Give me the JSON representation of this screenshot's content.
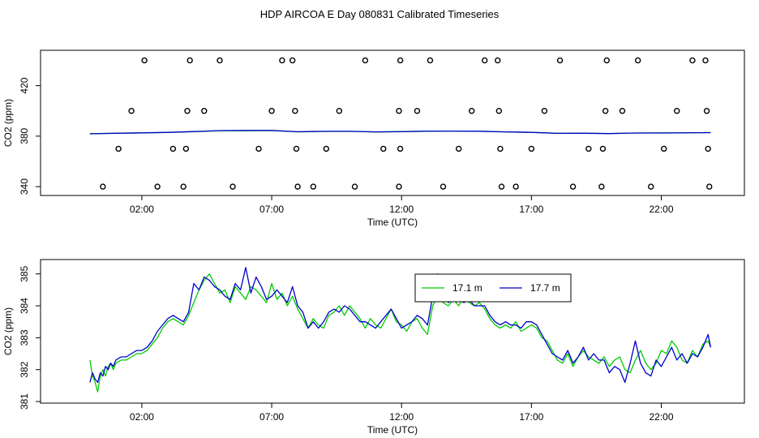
{
  "title": "HDP AIRCOA E  Day 080831  Calibrated Timeseries",
  "chart_data": [
    {
      "type": "line",
      "panel": "top",
      "xlabel": "Time (UTC)",
      "ylabel": "CO2 (ppm)",
      "x_unit": "hours",
      "xlim": [
        -1.9,
        25.2
      ],
      "ylim": [
        333,
        448
      ],
      "x_ticks": [
        {
          "v": 2,
          "label": "02:00"
        },
        {
          "v": 7,
          "label": "07:00"
        },
        {
          "v": 12,
          "label": "12:00"
        },
        {
          "v": 17,
          "label": "17:00"
        },
        {
          "v": 22,
          "label": "22:00"
        }
      ],
      "y_ticks": [
        {
          "v": 340,
          "label": "340"
        },
        {
          "v": 380,
          "label": "380"
        },
        {
          "v": 420,
          "label": "420"
        }
      ],
      "series": [
        {
          "color": "#00cc00",
          "x": [
            0,
            1,
            2,
            3,
            4,
            5,
            6,
            7,
            8,
            9,
            10,
            11,
            12,
            13,
            14,
            15,
            16,
            17,
            18,
            19,
            20,
            21,
            22,
            23.9
          ],
          "values": [
            382.0,
            382.3,
            382.6,
            382.9,
            383.5,
            384.3,
            384.3,
            384.4,
            383.4,
            383.7,
            383.8,
            383.3,
            383.6,
            383.9,
            384.0,
            383.9,
            383.4,
            383.0,
            382.3,
            382.4,
            382.1,
            382.5,
            382.6,
            382.8
          ]
        },
        {
          "color": "#0000cc",
          "x": [
            0,
            1,
            2,
            3,
            4,
            5,
            6,
            7,
            8,
            9,
            10,
            11,
            12,
            13,
            14,
            15,
            16,
            17,
            18,
            19,
            20,
            21,
            22,
            23.9
          ],
          "values": [
            381.8,
            382.3,
            382.6,
            383.0,
            383.6,
            384.4,
            384.5,
            384.5,
            383.5,
            383.8,
            383.8,
            383.4,
            383.5,
            384.0,
            384.0,
            383.9,
            383.4,
            383.0,
            382.2,
            382.3,
            382.0,
            382.5,
            382.5,
            382.8
          ]
        }
      ],
      "points": [
        {
          "x": 0.5,
          "y": 340
        },
        {
          "x": 1.1,
          "y": 370
        },
        {
          "x": 1.6,
          "y": 400
        },
        {
          "x": 2.1,
          "y": 440
        },
        {
          "x": 2.6,
          "y": 340
        },
        {
          "x": 3.2,
          "y": 370
        },
        {
          "x": 3.6,
          "y": 340
        },
        {
          "x": 3.7,
          "y": 370
        },
        {
          "x": 3.75,
          "y": 400
        },
        {
          "x": 3.85,
          "y": 440
        },
        {
          "x": 4.4,
          "y": 400
        },
        {
          "x": 5.0,
          "y": 440
        },
        {
          "x": 5.5,
          "y": 340
        },
        {
          "x": 6.5,
          "y": 370
        },
        {
          "x": 7.0,
          "y": 400
        },
        {
          "x": 7.4,
          "y": 440
        },
        {
          "x": 7.8,
          "y": 440
        },
        {
          "x": 7.9,
          "y": 400
        },
        {
          "x": 7.95,
          "y": 370
        },
        {
          "x": 8.0,
          "y": 340
        },
        {
          "x": 8.6,
          "y": 340
        },
        {
          "x": 9.1,
          "y": 370
        },
        {
          "x": 9.6,
          "y": 400
        },
        {
          "x": 10.2,
          "y": 340
        },
        {
          "x": 10.6,
          "y": 440
        },
        {
          "x": 11.3,
          "y": 370
        },
        {
          "x": 11.9,
          "y": 340
        },
        {
          "x": 11.95,
          "y": 370
        },
        {
          "x": 11.9,
          "y": 400
        },
        {
          "x": 11.95,
          "y": 440
        },
        {
          "x": 12.6,
          "y": 400
        },
        {
          "x": 13.1,
          "y": 440
        },
        {
          "x": 13.6,
          "y": 340
        },
        {
          "x": 14.2,
          "y": 370
        },
        {
          "x": 14.7,
          "y": 400
        },
        {
          "x": 15.2,
          "y": 440
        },
        {
          "x": 15.7,
          "y": 440
        },
        {
          "x": 15.75,
          "y": 400
        },
        {
          "x": 15.8,
          "y": 370
        },
        {
          "x": 15.85,
          "y": 340
        },
        {
          "x": 16.4,
          "y": 340
        },
        {
          "x": 17.0,
          "y": 370
        },
        {
          "x": 17.5,
          "y": 400
        },
        {
          "x": 18.1,
          "y": 440
        },
        {
          "x": 18.6,
          "y": 340
        },
        {
          "x": 19.2,
          "y": 370
        },
        {
          "x": 19.7,
          "y": 340
        },
        {
          "x": 19.75,
          "y": 370
        },
        {
          "x": 19.85,
          "y": 400
        },
        {
          "x": 19.9,
          "y": 440
        },
        {
          "x": 20.5,
          "y": 400
        },
        {
          "x": 21.1,
          "y": 440
        },
        {
          "x": 21.6,
          "y": 340
        },
        {
          "x": 22.1,
          "y": 370
        },
        {
          "x": 22.6,
          "y": 400
        },
        {
          "x": 23.2,
          "y": 440
        },
        {
          "x": 23.7,
          "y": 440
        },
        {
          "x": 23.75,
          "y": 400
        },
        {
          "x": 23.8,
          "y": 370
        },
        {
          "x": 23.85,
          "y": 340
        }
      ]
    },
    {
      "type": "line",
      "panel": "bottom",
      "xlabel": "Time (UTC)",
      "ylabel": "CO2 (ppm)",
      "x_unit": "hours",
      "xlim": [
        -1.9,
        25.2
      ],
      "ylim": [
        380.95,
        385.45
      ],
      "x_ticks": [
        {
          "v": 2,
          "label": "02:00"
        },
        {
          "v": 7,
          "label": "07:00"
        },
        {
          "v": 12,
          "label": "12:00"
        },
        {
          "v": 17,
          "label": "17:00"
        },
        {
          "v": 22,
          "label": "22:00"
        }
      ],
      "y_ticks": [
        {
          "v": 381,
          "label": "381"
        },
        {
          "v": 382,
          "label": "382"
        },
        {
          "v": 383,
          "label": "383"
        },
        {
          "v": 384,
          "label": "384"
        },
        {
          "v": 385,
          "label": "385"
        }
      ],
      "legend": {
        "position": "top-center"
      },
      "series": [
        {
          "name": "17.1 m",
          "color": "#00cc00",
          "x": [
            0,
            0.1,
            0.2,
            0.3,
            0.4,
            0.5,
            0.6,
            0.7,
            0.8,
            0.9,
            1.0,
            1.2,
            1.4,
            1.6,
            1.8,
            2.0,
            2.2,
            2.4,
            2.6,
            2.8,
            3.0,
            3.2,
            3.4,
            3.6,
            3.8,
            4.0,
            4.2,
            4.4,
            4.6,
            4.8,
            5.0,
            5.2,
            5.4,
            5.6,
            5.8,
            6.0,
            6.2,
            6.4,
            6.6,
            6.8,
            7.0,
            7.2,
            7.4,
            7.6,
            7.8,
            8.0,
            8.2,
            8.4,
            8.6,
            8.8,
            9.0,
            9.2,
            9.4,
            9.6,
            9.8,
            10.0,
            10.2,
            10.4,
            10.6,
            10.8,
            11.0,
            11.2,
            11.4,
            11.6,
            11.8,
            12.0,
            12.2,
            12.4,
            12.6,
            12.8,
            13.0,
            13.2,
            13.4,
            13.6,
            13.8,
            14.0,
            14.2,
            14.4,
            14.6,
            14.8,
            15.0,
            15.2,
            15.4,
            15.6,
            15.8,
            16.0,
            16.2,
            16.4,
            16.6,
            16.8,
            17.0,
            17.2,
            17.4,
            17.6,
            17.8,
            18.0,
            18.2,
            18.4,
            18.6,
            18.8,
            19.0,
            19.2,
            19.4,
            19.6,
            19.8,
            20.0,
            20.2,
            20.4,
            20.6,
            20.8,
            21.0,
            21.2,
            21.4,
            21.6,
            21.8,
            22.0,
            22.2,
            22.4,
            22.6,
            22.8,
            23.0,
            23.2,
            23.4,
            23.6,
            23.8,
            23.9
          ],
          "values": [
            382.3,
            381.8,
            381.6,
            381.3,
            381.8,
            382.0,
            381.8,
            382.1,
            382.2,
            382.0,
            382.2,
            382.3,
            382.3,
            382.4,
            382.5,
            382.5,
            382.6,
            382.8,
            383.0,
            383.3,
            383.5,
            383.6,
            383.5,
            383.4,
            383.7,
            384.1,
            384.5,
            384.8,
            385.0,
            384.7,
            384.4,
            384.5,
            384.1,
            384.6,
            384.4,
            384.2,
            384.6,
            384.5,
            384.3,
            384.1,
            384.7,
            384.2,
            384.4,
            384.0,
            384.3,
            383.9,
            383.6,
            383.3,
            383.6,
            383.4,
            383.3,
            383.7,
            383.8,
            384.0,
            383.7,
            384.0,
            383.8,
            383.6,
            383.3,
            383.6,
            383.4,
            383.3,
            383.6,
            383.9,
            383.5,
            383.4,
            383.2,
            383.5,
            383.6,
            383.3,
            383.1,
            384.0,
            384.3,
            384.1,
            384.0,
            384.2,
            384.0,
            384.3,
            384.1,
            384.0,
            384.1,
            383.9,
            383.6,
            383.4,
            383.3,
            383.4,
            383.3,
            383.5,
            383.2,
            383.3,
            383.4,
            383.3,
            383.0,
            382.9,
            382.6,
            382.3,
            382.2,
            382.5,
            382.1,
            382.4,
            382.6,
            382.4,
            382.3,
            382.2,
            382.4,
            382.1,
            382.3,
            382.4,
            382.0,
            381.9,
            382.3,
            382.6,
            382.2,
            382.0,
            382.2,
            382.6,
            382.5,
            382.9,
            382.7,
            382.3,
            382.2,
            382.6,
            382.4,
            382.8,
            382.9,
            382.7
          ]
        },
        {
          "name": "17.7 m",
          "color": "#0000cc",
          "x": [
            0,
            0.1,
            0.2,
            0.3,
            0.4,
            0.5,
            0.6,
            0.7,
            0.8,
            0.9,
            1.0,
            1.2,
            1.4,
            1.6,
            1.8,
            2.0,
            2.2,
            2.4,
            2.6,
            2.8,
            3.0,
            3.2,
            3.4,
            3.6,
            3.8,
            4.0,
            4.2,
            4.4,
            4.6,
            4.8,
            5.0,
            5.2,
            5.4,
            5.6,
            5.8,
            6.0,
            6.2,
            6.4,
            6.6,
            6.8,
            7.0,
            7.2,
            7.4,
            7.6,
            7.8,
            8.0,
            8.2,
            8.4,
            8.6,
            8.8,
            9.0,
            9.2,
            9.4,
            9.6,
            9.8,
            10.0,
            10.2,
            10.4,
            10.6,
            10.8,
            11.0,
            11.2,
            11.4,
            11.6,
            11.8,
            12.0,
            12.2,
            12.4,
            12.6,
            12.8,
            13.0,
            13.2,
            13.4,
            13.6,
            13.8,
            14.0,
            14.2,
            14.4,
            14.6,
            14.8,
            15.0,
            15.2,
            15.4,
            15.6,
            15.8,
            16.0,
            16.2,
            16.4,
            16.6,
            16.8,
            17.0,
            17.2,
            17.4,
            17.6,
            17.8,
            18.0,
            18.2,
            18.4,
            18.6,
            18.8,
            19.0,
            19.2,
            19.4,
            19.6,
            19.8,
            20.0,
            20.2,
            20.4,
            20.6,
            20.8,
            21.0,
            21.2,
            21.4,
            21.6,
            21.8,
            22.0,
            22.2,
            22.4,
            22.6,
            22.8,
            23.0,
            23.2,
            23.4,
            23.6,
            23.8,
            23.9
          ],
          "values": [
            381.6,
            381.9,
            381.7,
            381.6,
            381.9,
            381.8,
            382.1,
            382.0,
            382.2,
            382.1,
            382.3,
            382.4,
            382.4,
            382.5,
            382.6,
            382.6,
            382.7,
            382.9,
            383.2,
            383.4,
            383.6,
            383.7,
            383.6,
            383.5,
            383.8,
            384.7,
            384.5,
            384.9,
            384.8,
            384.6,
            384.5,
            384.3,
            384.2,
            384.7,
            384.5,
            385.2,
            384.4,
            384.9,
            384.6,
            384.2,
            384.3,
            384.5,
            384.3,
            384.1,
            384.6,
            384.0,
            383.8,
            383.3,
            383.5,
            383.3,
            383.5,
            383.8,
            383.9,
            383.8,
            384.0,
            383.9,
            383.7,
            383.5,
            383.5,
            383.4,
            383.3,
            383.5,
            383.7,
            383.9,
            383.6,
            383.3,
            383.4,
            383.5,
            383.7,
            383.6,
            383.4,
            384.3,
            385.0,
            384.5,
            384.1,
            384.3,
            384.2,
            384.1,
            384.2,
            384.0,
            384.0,
            384.0,
            383.7,
            383.5,
            383.4,
            383.5,
            383.4,
            383.4,
            383.3,
            383.5,
            383.5,
            383.4,
            383.1,
            382.8,
            382.5,
            382.4,
            382.3,
            382.6,
            382.2,
            382.4,
            382.7,
            382.3,
            382.5,
            382.3,
            382.3,
            381.9,
            382.1,
            382.0,
            381.6,
            382.2,
            382.9,
            382.2,
            381.9,
            381.8,
            382.3,
            382.1,
            382.4,
            382.7,
            382.3,
            382.5,
            382.2,
            382.5,
            382.4,
            382.7,
            383.1,
            382.7
          ]
        }
      ]
    }
  ]
}
